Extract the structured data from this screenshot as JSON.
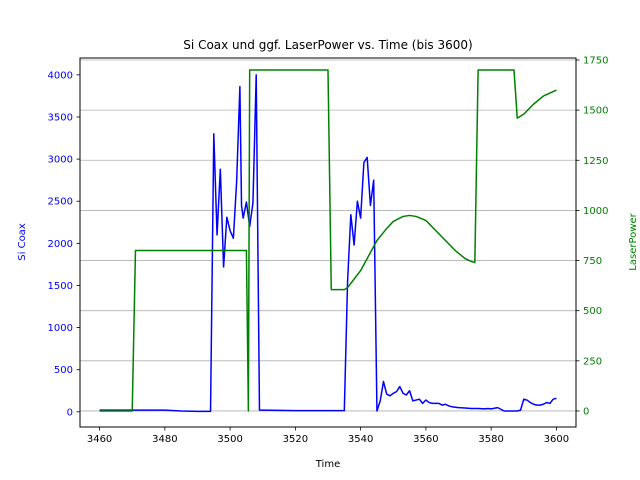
{
  "chart_data": {
    "type": "line",
    "title": "Si Coax und ggf. LaserPower vs. Time (bis 3600)",
    "xlabel": "Time",
    "ylabel_left": "Si Coax",
    "ylabel_right": "LaserPower",
    "xlim": [
      3454,
      3606
    ],
    "ylim_left": [
      -180,
      4200
    ],
    "ylim_right": [
      -80,
      1760
    ],
    "x_ticks": [
      3460,
      3480,
      3500,
      3520,
      3540,
      3560,
      3580,
      3600
    ],
    "y_ticks_left": [
      0,
      500,
      1000,
      1500,
      2000,
      2500,
      3000,
      3500,
      4000
    ],
    "y_ticks_right": [
      0,
      250,
      500,
      750,
      1000,
      1250,
      1500,
      1750
    ],
    "grid": "horizontal, right axis",
    "colors": {
      "left_axis": "#0000ff",
      "right_axis": "#008000",
      "grid": "#b0b0b0"
    },
    "series": [
      {
        "axis": "left",
        "color": "#0000ff",
        "x": [
          3460,
          3470,
          3480,
          3485,
          3490,
          3494,
          3495,
          3496,
          3497,
          3498,
          3499,
          3500,
          3501,
          3502,
          3503,
          3503.5,
          3504,
          3505,
          3506,
          3507,
          3508,
          3509,
          3510,
          3520,
          3530,
          3535,
          3536,
          3537,
          3538,
          3539,
          3540,
          3541,
          3542,
          3543,
          3544,
          3545,
          3546,
          3547,
          3548,
          3549,
          3550,
          3551,
          3552,
          3553,
          3554,
          3555,
          3556,
          3557,
          3558,
          3559,
          3560,
          3561,
          3562,
          3563,
          3564,
          3565,
          3566,
          3567,
          3568,
          3569,
          3570,
          3572,
          3574,
          3576,
          3578,
          3579,
          3580,
          3582,
          3584,
          3586,
          3588,
          3589,
          3590,
          3591,
          3592,
          3593,
          3594,
          3595,
          3596,
          3597,
          3598,
          3599,
          3600
        ],
        "y": [
          20,
          20,
          20,
          10,
          5,
          5,
          3300,
          2100,
          2880,
          1720,
          2310,
          2150,
          2060,
          2730,
          3860,
          2450,
          2300,
          2490,
          2200,
          2480,
          4000,
          20,
          20,
          15,
          15,
          15,
          1550,
          2340,
          1980,
          2500,
          2300,
          2960,
          3020,
          2450,
          2750,
          10,
          130,
          360,
          210,
          190,
          220,
          240,
          300,
          220,
          200,
          250,
          130,
          140,
          150,
          100,
          140,
          110,
          100,
          100,
          100,
          80,
          90,
          70,
          60,
          55,
          50,
          45,
          40,
          40,
          35,
          40,
          35,
          50,
          10,
          10,
          10,
          20,
          150,
          140,
          110,
          90,
          80,
          80,
          90,
          110,
          100,
          150,
          160
        ]
      },
      {
        "axis": "right",
        "color": "#008000",
        "x": [
          3460,
          3470,
          3471,
          3480,
          3490,
          3500,
          3504,
          3505,
          3505.6,
          3506,
          3510,
          3520,
          3530,
          3531,
          3535,
          3536,
          3540,
          3545,
          3548,
          3550,
          3553,
          3555,
          3557,
          3560,
          3563,
          3566,
          3569,
          3572,
          3574,
          3575,
          3576,
          3580,
          3587,
          3588,
          3590,
          3593,
          3596,
          3600
        ],
        "y": [
          0,
          0,
          800,
          800,
          800,
          800,
          800,
          800,
          0,
          1700,
          1700,
          1700,
          1700,
          605,
          605,
          615,
          700,
          850,
          910,
          945,
          970,
          975,
          970,
          950,
          900,
          850,
          800,
          760,
          745,
          740,
          1700,
          1700,
          1700,
          1460,
          1480,
          1530,
          1570,
          1600
        ]
      }
    ]
  }
}
